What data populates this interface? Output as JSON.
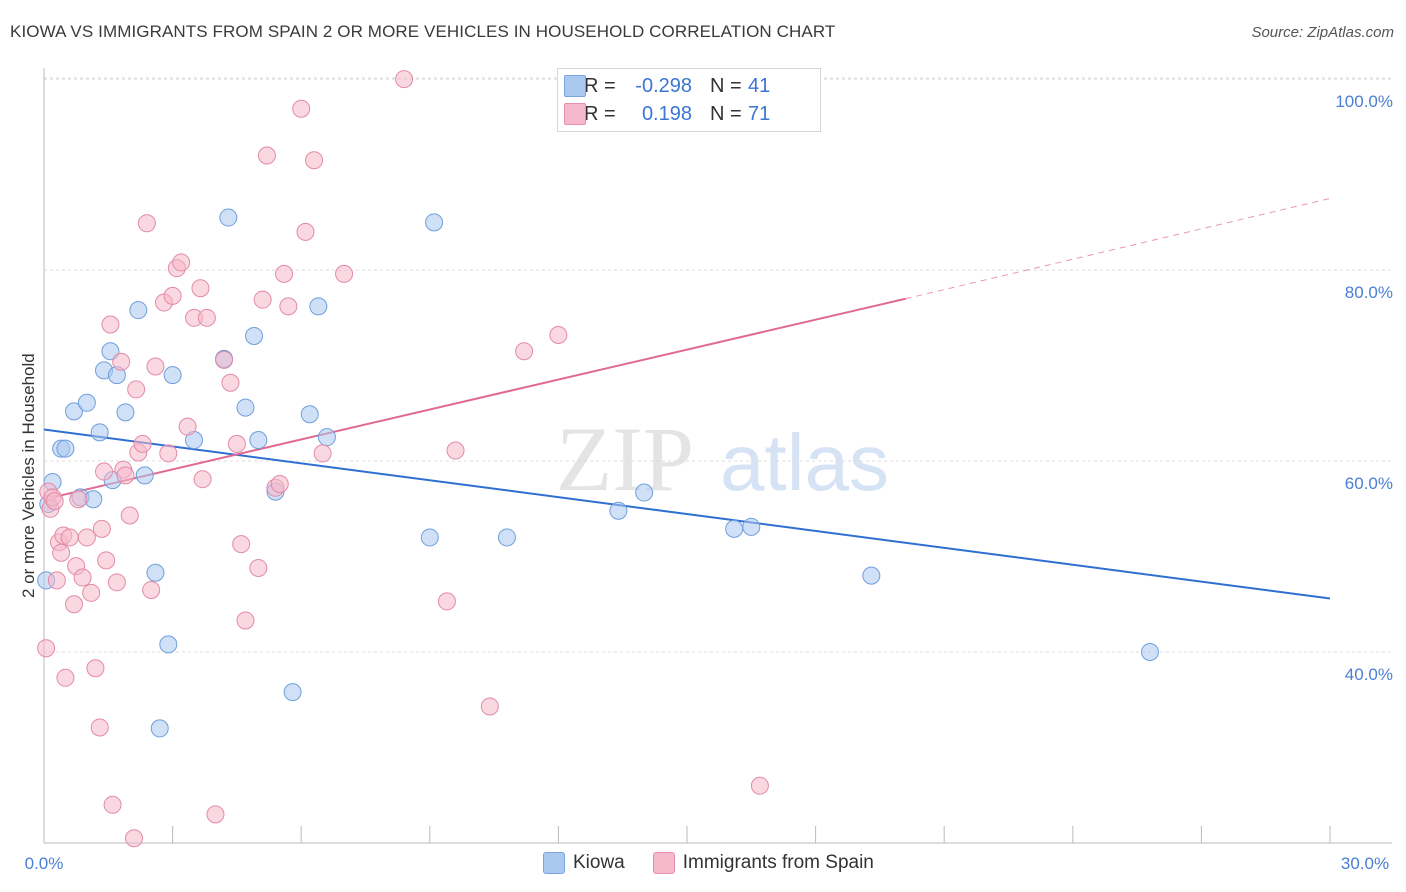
{
  "header": {
    "title": "KIOWA VS IMMIGRANTS FROM SPAIN 2 OR MORE VEHICLES IN HOUSEHOLD CORRELATION CHART",
    "source": "Source: ZipAtlas.com"
  },
  "watermark": {
    "zip": "ZIP",
    "atlas": "atlas"
  },
  "legend": {
    "rows": [
      {
        "r_label": "R =",
        "r_value": "-0.298",
        "n_label": "N =",
        "n_value": "41",
        "color": "#a9c8f0"
      },
      {
        "r_label": "R =",
        "r_value": "0.198",
        "n_label": "N =",
        "n_value": "71",
        "color": "#f6b8cb"
      }
    ]
  },
  "bottom_legend": {
    "items": [
      "Kiowa",
      "Immigrants from Spain"
    ]
  },
  "chart_data": {
    "type": "scatter",
    "title": "KIOWA VS IMMIGRANTS FROM SPAIN 2 OR MORE VEHICLES IN HOUSEHOLD CORRELATION CHART",
    "xlabel": "",
    "ylabel": "2 or more Vehicles in Household",
    "xlim": [
      0,
      30
    ],
    "ylim": [
      20,
      102
    ],
    "x_ticks": [
      "0.0%",
      "30.0%"
    ],
    "y_ticks": [
      {
        "value": 40,
        "label": "40.0%"
      },
      {
        "value": 60,
        "label": "60.0%"
      },
      {
        "value": 80,
        "label": "80.0%"
      },
      {
        "value": 100,
        "label": "100.0%"
      }
    ],
    "grid": true,
    "series": [
      {
        "name": "Kiowa",
        "color": "#a9c8f0",
        "stroke": "#6f9edb",
        "trend_color": "#2f6fd3",
        "trend": {
          "x": [
            0,
            30
          ],
          "y": [
            63.3,
            45.6
          ]
        },
        "points": [
          [
            0.05,
            47.5
          ],
          [
            0.2,
            57.8
          ],
          [
            0.4,
            61.3
          ],
          [
            0.5,
            61.3
          ],
          [
            0.7,
            65.2
          ],
          [
            0.85,
            56.2
          ],
          [
            1.0,
            66.1
          ],
          [
            1.15,
            56.0
          ],
          [
            1.3,
            63.0
          ],
          [
            1.4,
            69.5
          ],
          [
            1.55,
            71.5
          ],
          [
            1.6,
            58.0
          ],
          [
            1.7,
            69.0
          ],
          [
            1.9,
            65.1
          ],
          [
            2.2,
            75.8
          ],
          [
            2.35,
            58.5
          ],
          [
            2.6,
            48.3
          ],
          [
            2.7,
            32.0
          ],
          [
            2.9,
            40.8
          ],
          [
            3.0,
            69.0
          ],
          [
            3.5,
            62.2
          ],
          [
            4.2,
            70.7
          ],
          [
            4.3,
            85.5
          ],
          [
            4.7,
            65.6
          ],
          [
            4.9,
            73.1
          ],
          [
            5.0,
            62.2
          ],
          [
            5.4,
            56.8
          ],
          [
            5.8,
            35.8
          ],
          [
            6.2,
            64.9
          ],
          [
            6.4,
            76.2
          ],
          [
            6.6,
            62.5
          ],
          [
            9.0,
            52.0
          ],
          [
            9.1,
            85.0
          ],
          [
            10.8,
            52.0
          ],
          [
            13.4,
            54.8
          ],
          [
            14.0,
            56.7
          ],
          [
            16.1,
            52.9
          ],
          [
            16.5,
            53.1
          ],
          [
            19.3,
            48.0
          ],
          [
            25.8,
            40.0
          ],
          [
            0.1,
            55.5
          ]
        ]
      },
      {
        "name": "Immigrants from Spain",
        "color": "#f6b8cb",
        "stroke": "#e48aa6",
        "trend_color": "#e06a93",
        "trend": {
          "x": [
            0.2,
            20.1
          ],
          "y": [
            56.2,
            77.0
          ]
        },
        "trend_dashed": {
          "x": [
            20.1,
            30
          ],
          "y": [
            77.0,
            87.5
          ]
        },
        "points": [
          [
            0.05,
            40.4
          ],
          [
            0.1,
            56.8
          ],
          [
            0.15,
            55.0
          ],
          [
            0.2,
            56.2
          ],
          [
            0.3,
            47.5
          ],
          [
            0.35,
            51.5
          ],
          [
            0.4,
            50.4
          ],
          [
            0.45,
            52.2
          ],
          [
            0.5,
            37.3
          ],
          [
            0.6,
            52.0
          ],
          [
            0.7,
            45.0
          ],
          [
            0.75,
            49.0
          ],
          [
            0.8,
            56.0
          ],
          [
            0.9,
            47.8
          ],
          [
            1.0,
            52.0
          ],
          [
            1.1,
            46.2
          ],
          [
            1.2,
            38.3
          ],
          [
            1.3,
            32.1
          ],
          [
            1.35,
            52.9
          ],
          [
            1.45,
            49.6
          ],
          [
            1.55,
            74.3
          ],
          [
            1.6,
            24.0
          ],
          [
            1.7,
            47.3
          ],
          [
            1.8,
            70.4
          ],
          [
            1.85,
            59.1
          ],
          [
            1.9,
            58.5
          ],
          [
            2.0,
            54.3
          ],
          [
            2.1,
            20.5
          ],
          [
            2.15,
            67.5
          ],
          [
            2.2,
            60.9
          ],
          [
            2.3,
            61.8
          ],
          [
            2.4,
            84.9
          ],
          [
            2.5,
            46.5
          ],
          [
            2.6,
            69.9
          ],
          [
            2.8,
            76.6
          ],
          [
            2.9,
            60.8
          ],
          [
            3.0,
            77.3
          ],
          [
            3.1,
            80.2
          ],
          [
            3.2,
            80.8
          ],
          [
            3.35,
            63.6
          ],
          [
            3.5,
            75.0
          ],
          [
            3.65,
            78.1
          ],
          [
            3.7,
            58.1
          ],
          [
            3.8,
            75.0
          ],
          [
            4.0,
            23.0
          ],
          [
            4.2,
            70.6
          ],
          [
            4.35,
            68.2
          ],
          [
            4.5,
            61.8
          ],
          [
            4.6,
            51.3
          ],
          [
            4.7,
            43.3
          ],
          [
            5.0,
            48.8
          ],
          [
            5.1,
            76.9
          ],
          [
            5.2,
            92.0
          ],
          [
            5.4,
            57.2
          ],
          [
            5.5,
            57.6
          ],
          [
            5.6,
            79.6
          ],
          [
            5.7,
            76.2
          ],
          [
            6.0,
            96.9
          ],
          [
            6.1,
            84.0
          ],
          [
            6.3,
            91.5
          ],
          [
            6.5,
            60.8
          ],
          [
            7.0,
            79.6
          ],
          [
            8.4,
            100.0
          ],
          [
            9.4,
            45.3
          ],
          [
            9.6,
            61.1
          ],
          [
            10.4,
            34.3
          ],
          [
            11.2,
            71.5
          ],
          [
            12.0,
            73.2
          ],
          [
            16.7,
            26.0
          ],
          [
            0.25,
            55.8
          ],
          [
            1.4,
            58.9
          ]
        ]
      }
    ]
  }
}
